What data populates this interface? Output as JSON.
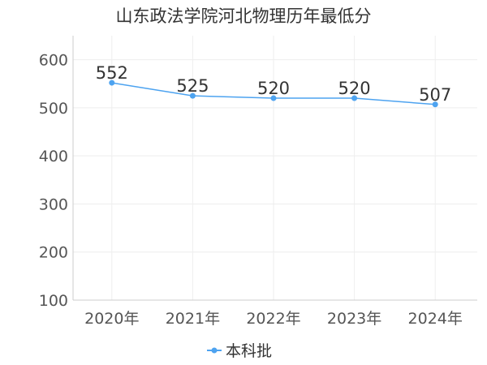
{
  "chart_data": {
    "type": "line",
    "title": "山东政法学院河北物理历年最低分",
    "categories": [
      "2020年",
      "2021年",
      "2022年",
      "2023年",
      "2024年"
    ],
    "series": [
      {
        "name": "本科批",
        "values": [
          552,
          525,
          520,
          520,
          507
        ]
      }
    ],
    "ylim": [
      100,
      650
    ],
    "yticks": [
      100,
      200,
      300,
      400,
      500,
      600
    ],
    "grid": true,
    "legend_position": "bottom-center",
    "colors": {
      "series": "#4da3f0",
      "grid": "#eeeeee",
      "axis": "#cccccc"
    }
  }
}
